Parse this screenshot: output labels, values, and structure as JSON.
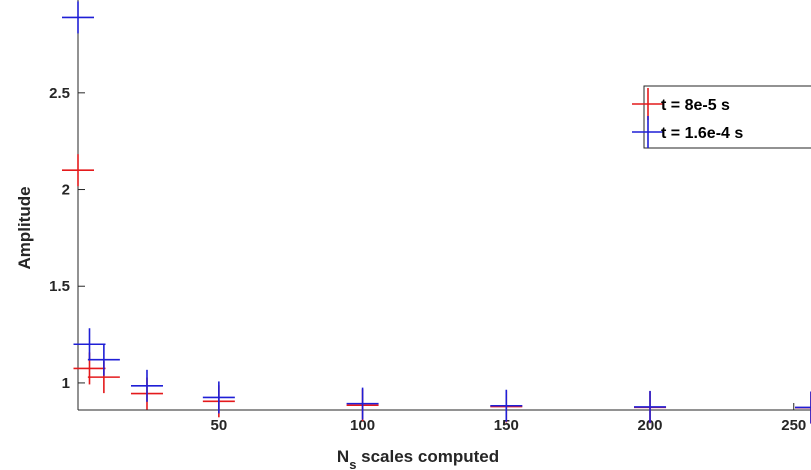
{
  "chart_data": {
    "type": "scatter",
    "xlabel_main": "N",
    "xlabel_sub": "s",
    "xlabel_rest": " scales computed",
    "ylabel": "Amplitude",
    "xlim": [
      1,
      256
    ],
    "ylim": [
      0.86,
      2.98
    ],
    "xticks": [
      50,
      100,
      150,
      200,
      250
    ],
    "yticks": [
      1,
      1.5,
      2,
      2.5
    ],
    "xtick_labels": [
      "50",
      "100",
      "150",
      "200",
      "250"
    ],
    "ytick_labels": [
      "1",
      "1.5",
      "2",
      "2.5"
    ],
    "marker": "+",
    "legend_location": "upper-right",
    "series": [
      {
        "name": "t = 8e-5 s",
        "color": "#e41a1c",
        "points": [
          {
            "x": 1,
            "y": 2.1
          },
          {
            "x": 5,
            "y": 1.075
          },
          {
            "x": 10,
            "y": 1.03
          },
          {
            "x": 25,
            "y": 0.945
          },
          {
            "x": 50,
            "y": 0.905
          },
          {
            "x": 100,
            "y": 0.885
          },
          {
            "x": 150,
            "y": 0.878
          },
          {
            "x": 200,
            "y": 0.874
          },
          {
            "x": 256,
            "y": 0.872
          }
        ]
      },
      {
        "name": "t = 1.6e-4 s",
        "color": "#1f1fd6",
        "points": [
          {
            "x": 1,
            "y": 2.89
          },
          {
            "x": 5,
            "y": 1.2
          },
          {
            "x": 10,
            "y": 1.12
          },
          {
            "x": 25,
            "y": 0.985
          },
          {
            "x": 50,
            "y": 0.925
          },
          {
            "x": 100,
            "y": 0.893
          },
          {
            "x": 150,
            "y": 0.882
          },
          {
            "x": 200,
            "y": 0.876
          },
          {
            "x": 256,
            "y": 0.873
          }
        ]
      }
    ]
  }
}
